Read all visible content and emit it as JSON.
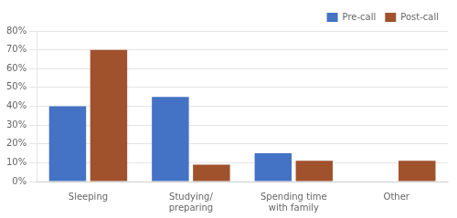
{
  "chart_data": {
    "type": "bar",
    "categories": [
      "Sleeping",
      "Studying/\npreparing",
      "Spending time\nwith family",
      "Other"
    ],
    "series": [
      {
        "name": "Pre-call",
        "color": "#4472C4",
        "values": [
          40,
          45,
          15,
          0
        ]
      },
      {
        "name": "Post-call",
        "color": "#A0522D",
        "values": [
          70,
          9,
          11,
          11
        ]
      }
    ],
    "ylim": [
      0,
      80
    ],
    "yticks": [
      {
        "value": 0,
        "label": "0%"
      },
      {
        "value": 10,
        "label": "10%"
      },
      {
        "value": 20,
        "label": "20%"
      },
      {
        "value": 30,
        "label": "30%"
      },
      {
        "value": 40,
        "label": "40%"
      },
      {
        "value": 50,
        "label": "50%"
      },
      {
        "value": 60,
        "label": "60%"
      },
      {
        "value": 70,
        "label": "70%"
      },
      {
        "value": 80,
        "label": "80%"
      }
    ],
    "grid": true,
    "legend": "upper right"
  }
}
